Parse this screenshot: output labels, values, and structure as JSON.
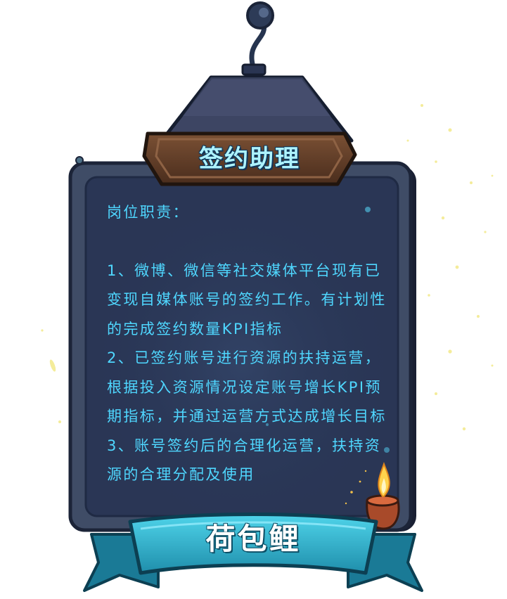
{
  "card": {
    "title": "签约助理",
    "heading": "岗位职责：",
    "duties": [
      "1、微博、微信等社交媒体平台现有已变现自媒体账号的签约工作。有计划性的完成签约数量KPI指标",
      "2、已签约账号进行资源的扶持运营，根据投入资源情况设定账号增长KPI预期指标，并通过运营方式达成增长目标",
      "3、账号签约后的合理化运营，扶持资源的合理分配及使用"
    ]
  },
  "ribbon": {
    "label": "荷包鲤"
  },
  "colors": {
    "board": "#2a3655",
    "frame": "#3f4c66",
    "text": "#4fd7ff",
    "ribbon": "#2ab3cf",
    "plaque": "#5a3a26"
  },
  "icons": [
    "lamp-hook-icon",
    "candle-icon",
    "sparkle-icon"
  ]
}
